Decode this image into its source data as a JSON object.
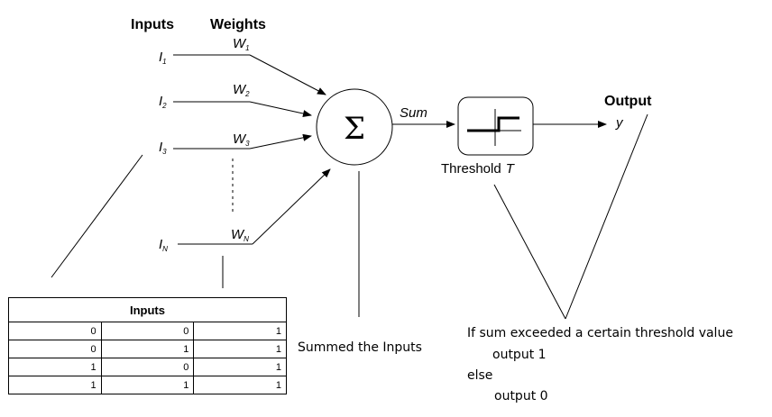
{
  "diagram": {
    "heading_inputs": "Inputs",
    "heading_weights": "Weights",
    "inputs": [
      "I₁",
      "I₂",
      "I₃",
      "Iₙ"
    ],
    "input_labels": [
      {
        "main": "I",
        "sub": "1"
      },
      {
        "main": "I",
        "sub": "2"
      },
      {
        "main": "I",
        "sub": "3"
      },
      {
        "main": "I",
        "sub": "N"
      }
    ],
    "weight_labels": [
      {
        "main": "W",
        "sub": "1"
      },
      {
        "main": "W",
        "sub": "2"
      },
      {
        "main": "W",
        "sub": "3"
      },
      {
        "main": "W",
        "sub": "N"
      }
    ],
    "sum_symbol": "Σ",
    "sum_label": "Sum",
    "threshold_label": "Threshold",
    "threshold_var": "T",
    "output_heading": "Output",
    "output_var": "y"
  },
  "table": {
    "header": "Inputs",
    "rows": [
      [
        0,
        0,
        1
      ],
      [
        0,
        1,
        1
      ],
      [
        1,
        0,
        1
      ],
      [
        1,
        1,
        1
      ]
    ]
  },
  "notes": {
    "summed": "Summed the Inputs",
    "rule_line1": "If sum exceeded a certain threshold value",
    "rule_line2": "output 1",
    "rule_line3": "else",
    "rule_line4": "output 0"
  }
}
